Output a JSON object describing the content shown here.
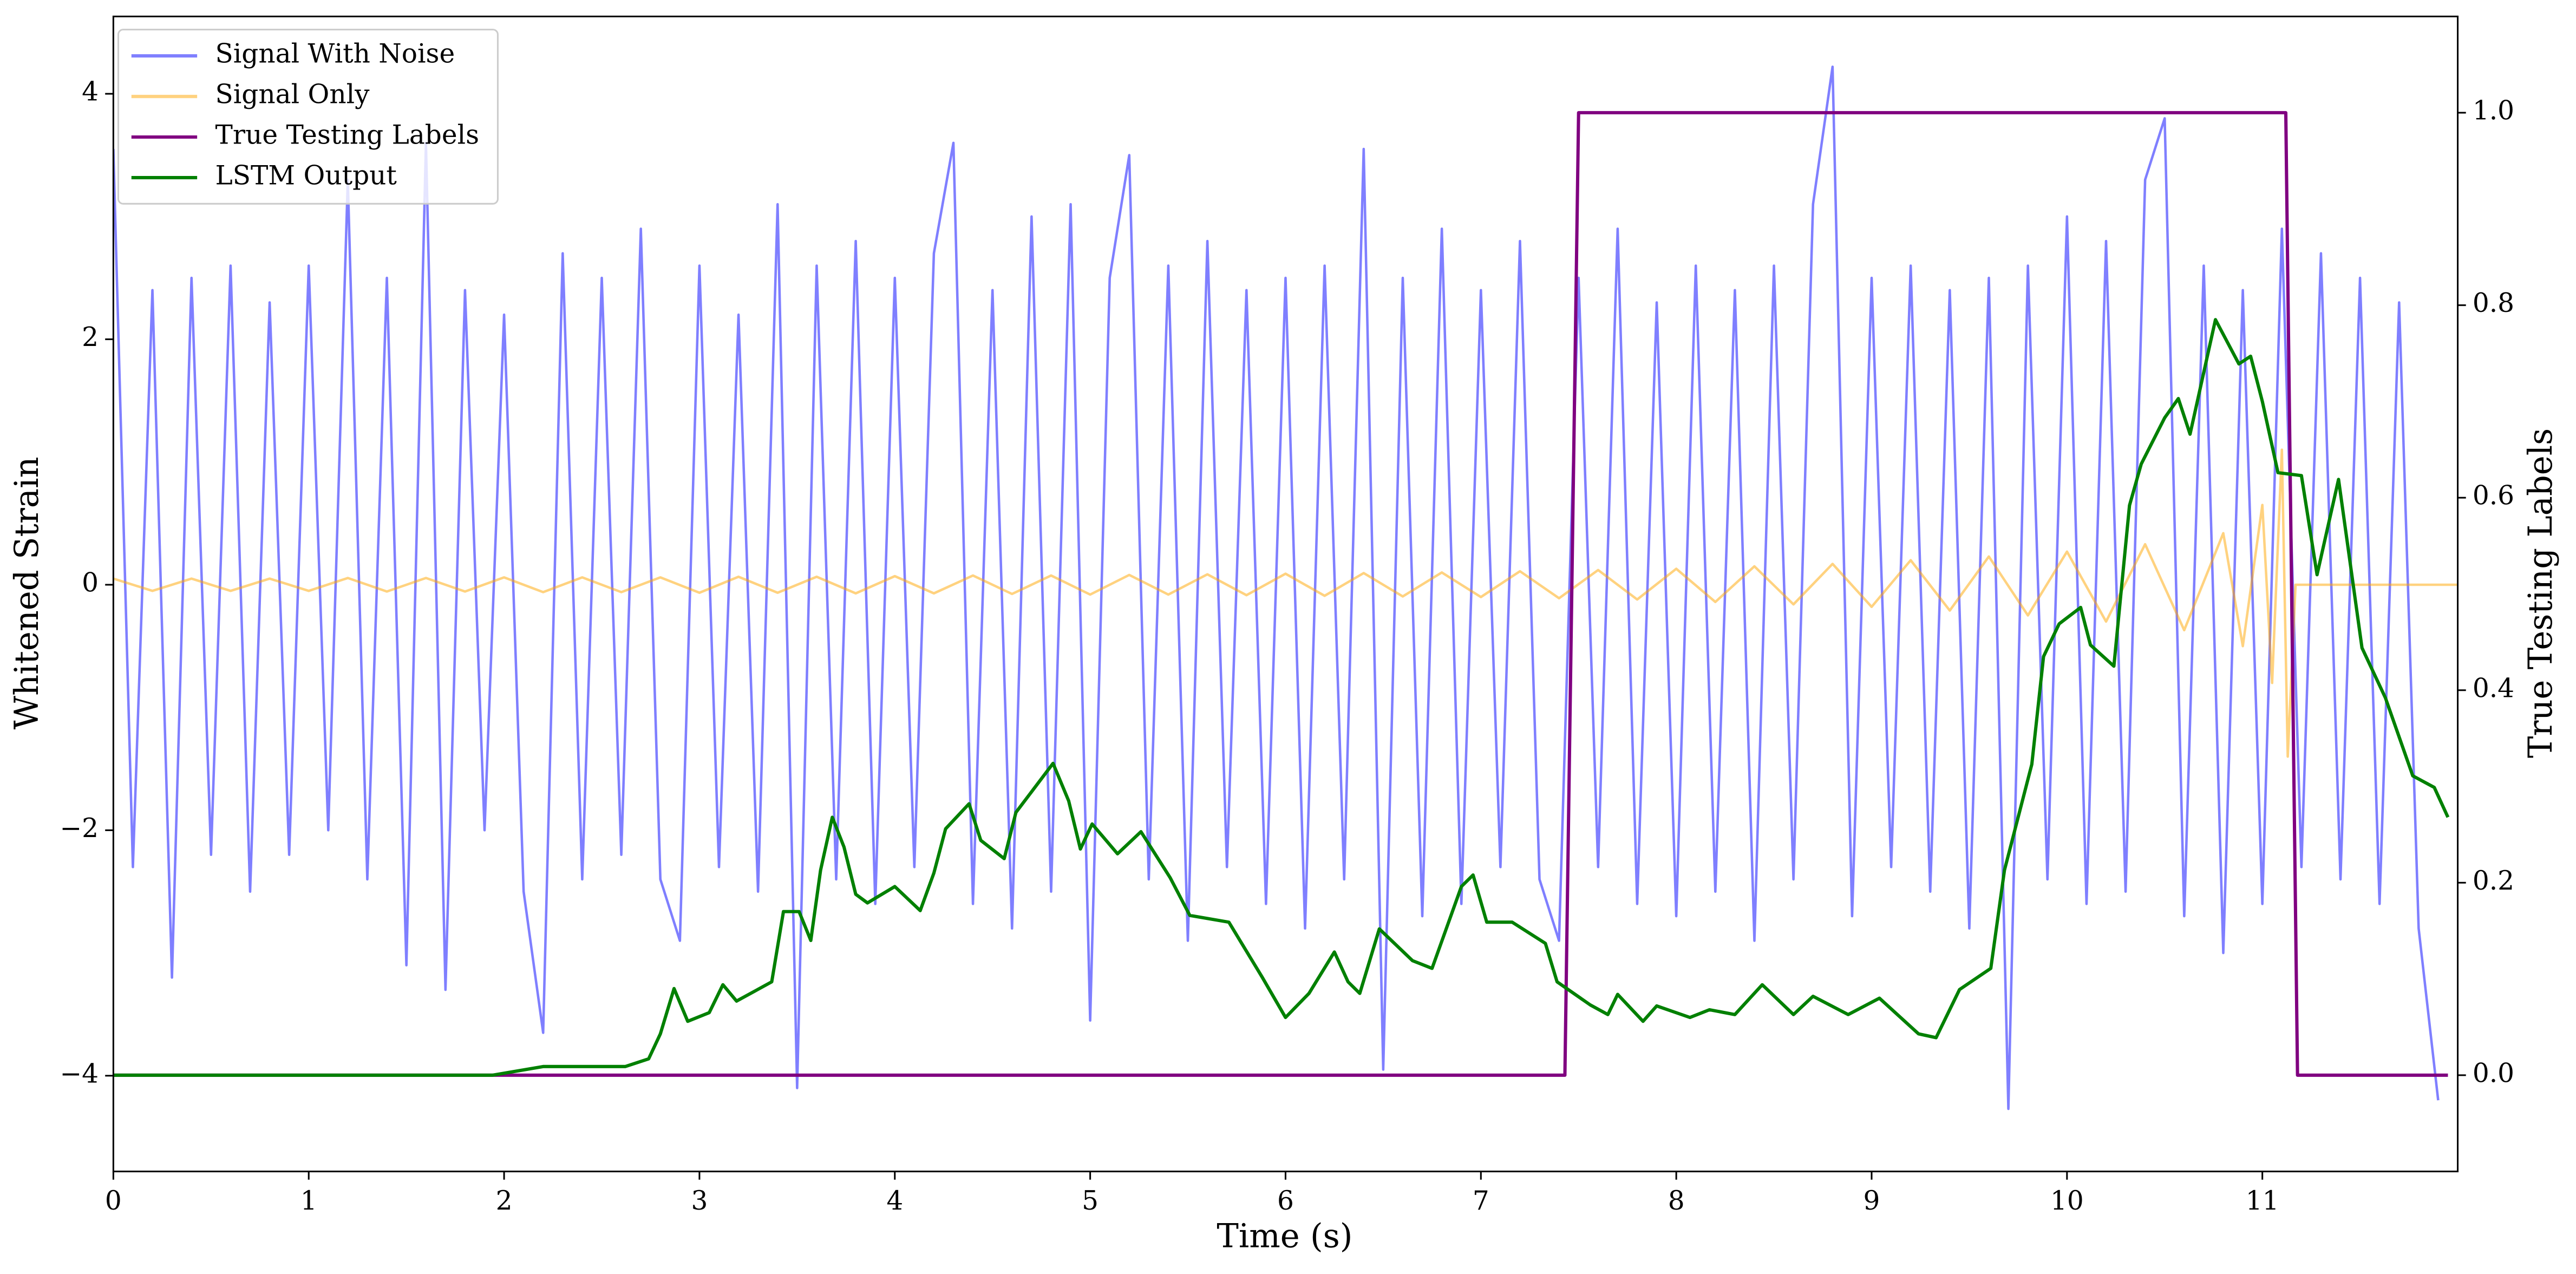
{
  "chart_data": {
    "type": "line",
    "xlabel": "Time (s)",
    "ylabel": "Whitened Strain",
    "y2label": "True Testing Labels",
    "xlim": [
      0,
      12
    ],
    "ylim": [
      -4.78,
      4.63
    ],
    "y2lim": [
      -0.1,
      1.1
    ],
    "xticks": [
      0,
      1,
      2,
      3,
      4,
      5,
      6,
      7,
      8,
      9,
      10,
      11
    ],
    "yticks": [
      {
        "value": -4,
        "label": "−4"
      },
      {
        "value": -2,
        "label": "−2"
      },
      0,
      2,
      4
    ],
    "y2ticks": [
      {
        "value": 0,
        "label": "0.0"
      },
      0.2,
      0.4,
      0.6,
      0.8,
      {
        "value": 1,
        "label": "1.0"
      }
    ],
    "grid": false,
    "legend": "upper left",
    "series": [
      {
        "name": "Signal With Noise",
        "color": "#0000ff",
        "alpha": 0.5,
        "x": [
          0,
          0.1,
          0.2,
          0.3,
          0.4,
          0.5,
          0.6,
          0.7,
          0.8,
          0.9,
          1,
          1.1,
          1.2,
          1.3,
          1.4,
          1.5,
          1.6,
          1.7,
          1.8,
          1.9,
          2,
          2.1,
          2.2,
          2.3,
          2.4,
          2.5,
          2.6,
          2.7,
          2.8,
          2.9,
          3,
          3.1,
          3.2,
          3.3,
          3.4,
          3.5,
          3.6,
          3.7,
          3.8,
          3.9,
          4,
          4.1,
          4.2,
          4.3,
          4.4,
          4.5,
          4.6,
          4.7,
          4.8,
          4.9,
          5,
          5.1,
          5.2,
          5.3,
          5.4,
          5.5,
          5.6,
          5.7,
          5.8,
          5.9,
          6,
          6.1,
          6.2,
          6.3,
          6.4,
          6.5,
          6.6,
          6.7,
          6.8,
          6.9,
          7,
          7.1,
          7.2,
          7.3,
          7.4,
          7.5,
          7.6,
          7.7,
          7.8,
          7.9,
          8,
          8.1,
          8.2,
          8.3,
          8.4,
          8.5,
          8.6,
          8.7,
          8.8,
          8.9,
          9,
          9.1,
          9.2,
          9.3,
          9.4,
          9.5,
          9.6,
          9.7,
          9.8,
          9.9,
          10,
          10.1,
          10.2,
          10.3,
          10.4,
          10.5,
          10.6,
          10.7,
          10.8,
          10.9,
          11,
          11.1,
          11.2,
          11.3,
          11.4,
          11.5,
          11.6,
          11.7,
          11.8,
          11.9
        ],
        "values": [
          3.55,
          -2.3,
          2.4,
          -3.2,
          2.5,
          -2.2,
          2.6,
          -2.5,
          2.3,
          -2.2,
          2.6,
          -2.0,
          3.3,
          -2.4,
          2.5,
          -3.1,
          3.6,
          -3.3,
          2.4,
          -2.0,
          2.2,
          -2.5,
          -3.65,
          2.7,
          -2.4,
          2.5,
          -2.2,
          2.9,
          -2.4,
          -2.9,
          2.6,
          -2.3,
          2.2,
          -2.5,
          3.1,
          -4.1,
          2.6,
          -2.4,
          2.8,
          -2.6,
          2.5,
          -2.3,
          2.7,
          3.6,
          -2.6,
          2.4,
          -2.8,
          3.0,
          -2.5,
          3.1,
          -3.55,
          2.5,
          3.5,
          -2.4,
          2.6,
          -2.9,
          2.8,
          -2.3,
          2.4,
          -2.6,
          2.5,
          -2.8,
          2.6,
          -2.4,
          3.55,
          -3.95,
          2.5,
          -2.7,
          2.9,
          -2.6,
          2.4,
          -2.3,
          2.8,
          -2.4,
          -2.9,
          2.5,
          -2.3,
          2.9,
          -2.6,
          2.3,
          -2.7,
          2.6,
          -2.5,
          2.4,
          -2.9,
          2.6,
          -2.4,
          3.1,
          4.22,
          -2.7,
          2.5,
          -2.3,
          2.6,
          -2.5,
          2.4,
          -2.8,
          2.5,
          -4.27,
          2.6,
          -2.4,
          3.0,
          -2.6,
          2.8,
          -2.5,
          3.3,
          3.8,
          -2.7,
          2.6,
          -3.0,
          2.4,
          -2.6,
          2.9,
          -2.3,
          2.7,
          -2.4,
          2.5,
          -2.6,
          2.3,
          -2.8,
          -4.2
        ]
      },
      {
        "name": "Signal Only",
        "color": "#ffa500",
        "alpha": 0.5,
        "x": [
          0,
          0.2,
          0.4,
          0.6,
          0.8,
          1,
          1.2,
          1.4,
          1.6,
          1.8,
          2,
          2.2,
          2.4,
          2.6,
          2.8,
          3,
          3.2,
          3.4,
          3.6,
          3.8,
          4,
          4.2,
          4.4,
          4.6,
          4.8,
          5,
          5.2,
          5.4,
          5.6,
          5.8,
          6,
          6.2,
          6.4,
          6.6,
          6.8,
          7,
          7.2,
          7.4,
          7.6,
          7.8,
          8,
          8.2,
          8.4,
          8.6,
          8.8,
          9,
          9.2,
          9.4,
          9.6,
          9.8,
          10,
          10.2,
          10.4,
          10.6,
          10.8,
          10.9,
          11,
          11.05,
          11.1,
          11.13,
          11.17,
          12
        ],
        "values": [
          0.05,
          -0.05,
          0.05,
          -0.05,
          0.05,
          -0.05,
          0.055,
          -0.055,
          0.055,
          -0.055,
          0.06,
          -0.06,
          0.06,
          -0.06,
          0.06,
          -0.065,
          0.065,
          -0.065,
          0.065,
          -0.07,
          0.07,
          -0.07,
          0.075,
          -0.075,
          0.075,
          -0.08,
          0.08,
          -0.08,
          0.085,
          -0.085,
          0.09,
          -0.09,
          0.095,
          -0.095,
          0.1,
          -0.1,
          0.11,
          -0.11,
          0.12,
          -0.12,
          0.13,
          -0.14,
          0.15,
          -0.16,
          0.17,
          -0.18,
          0.2,
          -0.21,
          0.23,
          -0.25,
          0.27,
          -0.3,
          0.33,
          -0.37,
          0.42,
          -0.5,
          0.65,
          -0.8,
          1.1,
          -1.4,
          0,
          0
        ]
      },
      {
        "name": "True Testing Labels",
        "color": "#800080",
        "alpha": 1,
        "axis": "y2",
        "x": [
          0,
          7.43,
          7.5,
          11.12,
          11.18,
          11.95
        ],
        "values": [
          0,
          0,
          1,
          1,
          0,
          0
        ]
      },
      {
        "name": "LSTM Output",
        "color": "#008000",
        "alpha": 1,
        "axis": "y2",
        "x": [
          0,
          1.94,
          2.2,
          2.62,
          2.74,
          2.8,
          2.87,
          2.94,
          3.05,
          3.12,
          3.19,
          3.37,
          3.43,
          3.51,
          3.57,
          3.62,
          3.68,
          3.74,
          3.8,
          3.86,
          4,
          4.13,
          4.2,
          4.26,
          4.38,
          4.44,
          4.56,
          4.62,
          4.81,
          4.89,
          4.95,
          5.01,
          5.14,
          5.26,
          5.41,
          5.51,
          5.71,
          5.88,
          6,
          6.12,
          6.25,
          6.32,
          6.38,
          6.48,
          6.65,
          6.75,
          6.9,
          6.96,
          7.03,
          7.16,
          7.33,
          7.39,
          7.56,
          7.65,
          7.7,
          7.83,
          7.9,
          8.07,
          8.17,
          8.3,
          8.44,
          8.6,
          8.7,
          8.88,
          9.04,
          9.24,
          9.33,
          9.45,
          9.61,
          9.68,
          9.82,
          9.88,
          9.96,
          10.07,
          10.12,
          10.24,
          10.32,
          10.38,
          10.5,
          10.57,
          10.63,
          10.76,
          10.88,
          10.94,
          11,
          11.08,
          11.2,
          11.28,
          11.39,
          11.51,
          11.63,
          11.77,
          11.88,
          11.95
        ],
        "values": [
          0,
          0,
          0.009,
          0.009,
          0.017,
          0.043,
          0.09,
          0.056,
          0.065,
          0.094,
          0.077,
          0.097,
          0.17,
          0.17,
          0.14,
          0.213,
          0.268,
          0.237,
          0.188,
          0.179,
          0.196,
          0.171,
          0.21,
          0.256,
          0.282,
          0.244,
          0.225,
          0.273,
          0.324,
          0.285,
          0.235,
          0.261,
          0.23,
          0.253,
          0.205,
          0.166,
          0.159,
          0.102,
          0.06,
          0.085,
          0.128,
          0.097,
          0.085,
          0.152,
          0.119,
          0.111,
          0.196,
          0.208,
          0.159,
          0.159,
          0.137,
          0.097,
          0.073,
          0.063,
          0.084,
          0.056,
          0.072,
          0.06,
          0.068,
          0.063,
          0.094,
          0.063,
          0.082,
          0.063,
          0.08,
          0.043,
          0.039,
          0.089,
          0.111,
          0.213,
          0.323,
          0.435,
          0.469,
          0.486,
          0.447,
          0.425,
          0.592,
          0.635,
          0.683,
          0.703,
          0.666,
          0.785,
          0.739,
          0.747,
          0.7,
          0.626,
          0.623,
          0.52,
          0.619,
          0.444,
          0.392,
          0.311,
          0.299,
          0.268
        ]
      }
    ]
  }
}
